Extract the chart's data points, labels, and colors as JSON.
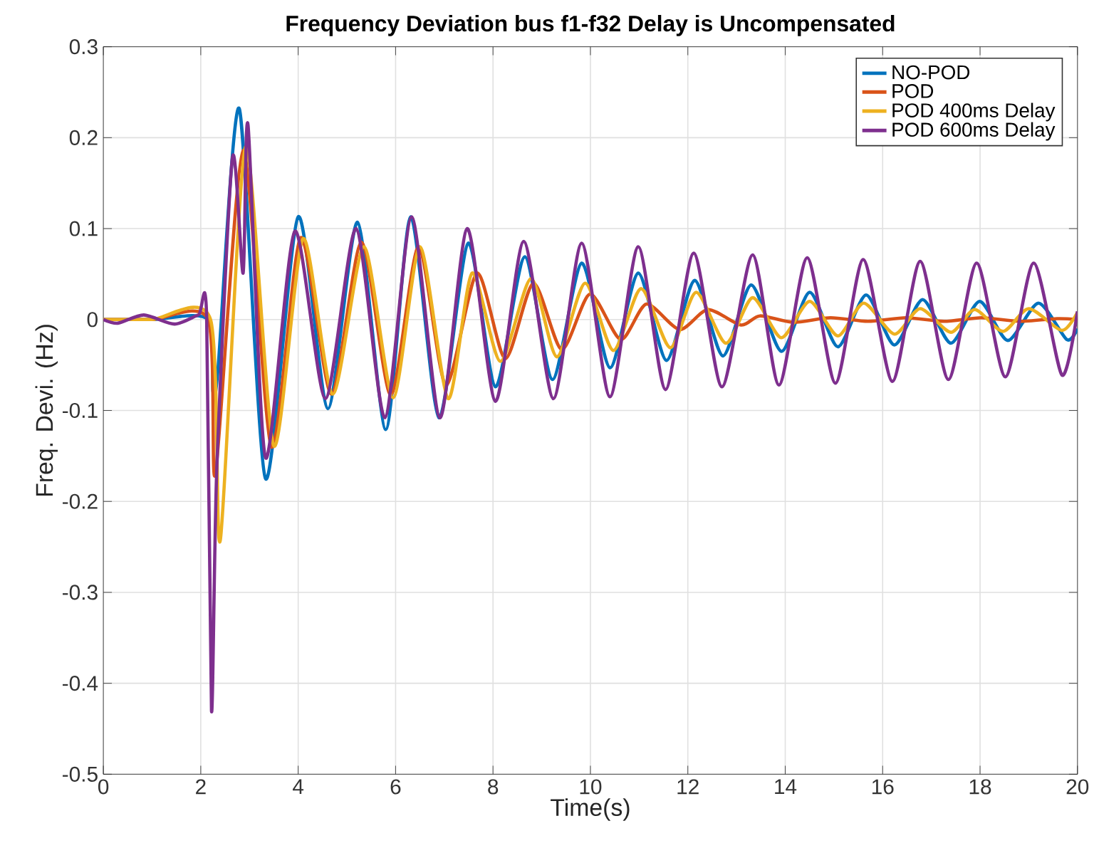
{
  "chart_data": {
    "type": "line",
    "title": "Frequency Deviation bus f1-f32 Delay is Uncompensated",
    "xlabel": "Time(s)",
    "ylabel": "Freq. Devi. (Hz)",
    "xlim": [
      0,
      20
    ],
    "ylim": [
      -0.5,
      0.3
    ],
    "xticks": [
      0,
      2,
      4,
      6,
      8,
      10,
      12,
      14,
      16,
      18,
      20
    ],
    "yticks": [
      -0.5,
      -0.4,
      -0.3,
      -0.2,
      -0.1,
      0,
      0.1,
      0.2,
      0.3
    ],
    "grid": true,
    "legend": "top right",
    "marker": "none",
    "line_style": "solid",
    "series": [
      {
        "name": "NO-POD",
        "color": "#0072bd",
        "x": [
          0,
          1,
          2.15,
          2.25,
          2.35,
          2.79,
          3.33,
          4.0,
          4.61,
          5.22,
          5.8,
          6.31,
          6.89,
          7.49,
          8.05,
          8.65,
          9.22,
          9.82,
          10.4,
          10.98,
          11.56,
          12.14,
          12.72,
          13.3,
          13.92,
          14.5,
          15.08,
          15.66,
          16.24,
          16.82,
          17.4,
          17.99,
          18.57,
          19.2,
          19.78,
          20
        ],
        "values": [
          0,
          0,
          0,
          -0.079,
          -0.057,
          0.232,
          -0.175,
          0.113,
          -0.098,
          0.107,
          -0.121,
          0.113,
          -0.108,
          0.084,
          -0.074,
          0.069,
          -0.066,
          0.062,
          -0.053,
          0.051,
          -0.045,
          0.043,
          -0.04,
          0.038,
          -0.035,
          0.03,
          -0.03,
          0.027,
          -0.028,
          0.022,
          -0.026,
          0.02,
          -0.023,
          0.018,
          -0.022,
          -0.01
        ]
      },
      {
        "name": "POD",
        "color": "#d95319",
        "x": [
          0,
          1,
          2.15,
          2.3,
          2.87,
          3.45,
          4.05,
          4.68,
          5.3,
          5.9,
          6.47,
          7.03,
          7.67,
          8.25,
          8.83,
          9.41,
          9.99,
          10.62,
          11.15,
          11.83,
          12.41,
          13.09,
          13.48,
          14.16,
          14.93,
          15.7,
          16.48,
          17.26,
          18.03,
          18.8,
          19.58,
          20
        ],
        "values": [
          0,
          0,
          0,
          -0.17,
          0.186,
          -0.14,
          0.09,
          -0.082,
          0.085,
          -0.083,
          0.08,
          -0.072,
          0.051,
          -0.043,
          0.04,
          -0.033,
          0.028,
          -0.022,
          0.017,
          -0.011,
          0.011,
          -0.006,
          0.004,
          -0.003,
          0.002,
          -0.002,
          0.002,
          -0.002,
          0.002,
          -0.002,
          0.001,
          0
        ]
      },
      {
        "name": "POD 400ms Delay",
        "color": "#edb120",
        "x": [
          0,
          1,
          2.2,
          2.4,
          2.92,
          3.5,
          4.1,
          4.71,
          5.35,
          5.95,
          6.5,
          7.08,
          7.57,
          8.15,
          8.78,
          9.31,
          9.89,
          10.47,
          11.04,
          11.64,
          12.17,
          12.78,
          13.33,
          13.92,
          14.5,
          15.08,
          15.61,
          16.24,
          16.77,
          17.4,
          17.89,
          18.47,
          19.0,
          19.68,
          20
        ],
        "values": [
          0,
          0,
          0,
          -0.243,
          0.19,
          -0.139,
          0.089,
          -0.082,
          0.08,
          -0.086,
          0.08,
          -0.087,
          0.051,
          -0.046,
          0.045,
          -0.041,
          0.04,
          -0.034,
          0.034,
          -0.031,
          0.03,
          -0.026,
          0.024,
          -0.02,
          0.02,
          -0.018,
          0.018,
          -0.016,
          0.012,
          -0.014,
          0.011,
          -0.013,
          0.012,
          -0.012,
          0.008
        ]
      },
      {
        "name": "POD 600ms Delay",
        "color": "#7e2f8e",
        "x": [
          0,
          0.3,
          0.83,
          1.46,
          1.95,
          2.12,
          2.22,
          2.33,
          2.65,
          2.87,
          2.97,
          3.33,
          3.93,
          4.56,
          5.19,
          5.78,
          6.33,
          6.91,
          7.47,
          8.05,
          8.63,
          9.24,
          9.82,
          10.4,
          10.98,
          11.54,
          12.12,
          12.7,
          13.33,
          13.87,
          14.45,
          15.03,
          15.6,
          16.2,
          16.77,
          17.35,
          17.93,
          18.52,
          19.1,
          19.68,
          20
        ],
        "values": [
          0,
          -0.004,
          0.005,
          -0.005,
          0.005,
          0.005,
          -0.43,
          -0.162,
          0.178,
          0.051,
          0.214,
          -0.152,
          0.097,
          -0.087,
          0.1,
          -0.108,
          0.113,
          -0.108,
          0.1,
          -0.09,
          0.086,
          -0.087,
          0.084,
          -0.085,
          0.08,
          -0.077,
          0.073,
          -0.074,
          0.071,
          -0.072,
          0.068,
          -0.07,
          0.066,
          -0.068,
          0.064,
          -0.066,
          0.062,
          -0.063,
          0.062,
          -0.061,
          0.009
        ]
      }
    ]
  }
}
